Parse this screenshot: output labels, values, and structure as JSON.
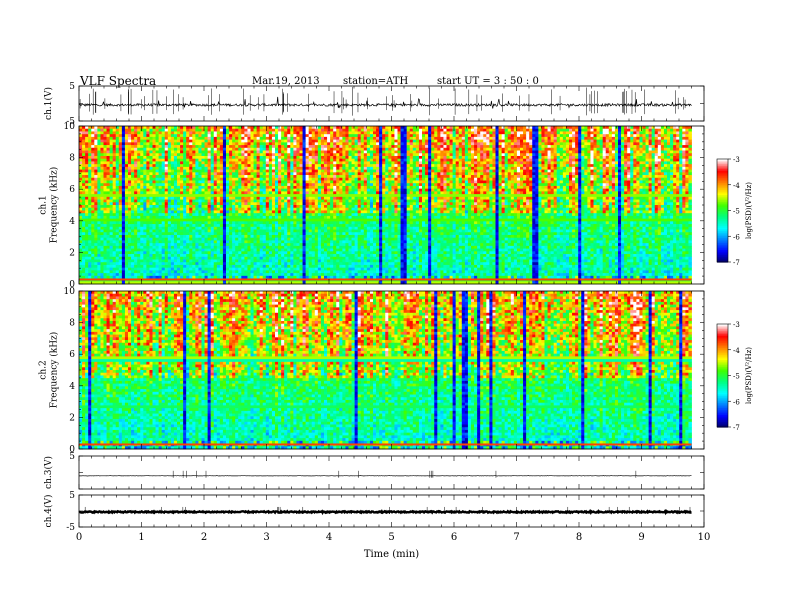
{
  "header": {
    "title": "VLF  Spectra",
    "date": "Mar.19, 2013",
    "station": "station=ATH",
    "start": "start  UT  =   3  : 50 : 0"
  },
  "chart_data": [
    {
      "type": "line",
      "name": "ch1-waveform",
      "ylabel": "ch.1(V)",
      "ylim": [
        -5,
        5
      ],
      "y_ticks": [
        "5",
        "-5"
      ],
      "xlim": [
        0,
        10
      ],
      "x_data_range": [
        0,
        9.8
      ],
      "baseline": -0.4,
      "noise_amplitude": 0.35
    },
    {
      "type": "heatmap",
      "name": "ch1-spectrogram",
      "ylabel": "ch.1\nFrequency  (kHz)",
      "ylim": [
        0,
        10
      ],
      "y_ticks": [
        "0",
        "2",
        "4",
        "6",
        "8",
        "10"
      ],
      "xlim": [
        0,
        10
      ],
      "x_data_range": [
        0,
        9.8
      ],
      "colorbar": {
        "label": "log(PSD)(V²/Hz)",
        "range": [
          -7,
          -3
        ],
        "ticks": [
          "-3",
          "-4",
          "-5",
          "-6",
          "-7"
        ],
        "colors": [
          "#000060",
          "#0000ff",
          "#0080ff",
          "#00ffff",
          "#00ff80",
          "#40ff00",
          "#ffff00",
          "#ff8000",
          "#ff0000",
          "#ffffff"
        ]
      }
    },
    {
      "type": "heatmap",
      "name": "ch2-spectrogram",
      "ylabel": "ch.2\nFrequency  (kHz)",
      "ylim": [
        0,
        10
      ],
      "y_ticks": [
        "0",
        "2",
        "4",
        "6",
        "8",
        "10"
      ],
      "xlim": [
        0,
        10
      ],
      "x_data_range": [
        0,
        9.8
      ],
      "colorbar": {
        "label": "log(PSD)(V²/Hz)",
        "range": [
          -7,
          -3
        ],
        "ticks": [
          "-3",
          "-4",
          "-5",
          "-6",
          "-7"
        ],
        "colors": [
          "#000060",
          "#0000ff",
          "#0080ff",
          "#00ffff",
          "#00ff80",
          "#40ff00",
          "#ffff00",
          "#ff8000",
          "#ff0000",
          "#ffffff"
        ]
      }
    },
    {
      "type": "line",
      "name": "ch3-waveform",
      "ylabel": "ch.3(V)",
      "ylim": [
        -5,
        5
      ],
      "y_ticks": [
        "5"
      ],
      "xlim": [
        0,
        10
      ],
      "x_data_range": [
        0,
        9.8
      ],
      "baseline": -1.0,
      "noise_amplitude": 0.05
    },
    {
      "type": "line",
      "name": "ch4-waveform",
      "ylabel": "ch.4(V)",
      "ylim": [
        -5,
        5
      ],
      "y_ticks": [
        "5",
        "-5"
      ],
      "xlim": [
        0,
        10
      ],
      "x_data_range": [
        0,
        9.8
      ],
      "baseline": -0.3,
      "noise_amplitude": 0.2
    }
  ],
  "xaxis": {
    "label": "Time  (min)",
    "ticks": [
      "0",
      "1",
      "2",
      "3",
      "4",
      "5",
      "6",
      "7",
      "8",
      "9",
      "10"
    ]
  }
}
